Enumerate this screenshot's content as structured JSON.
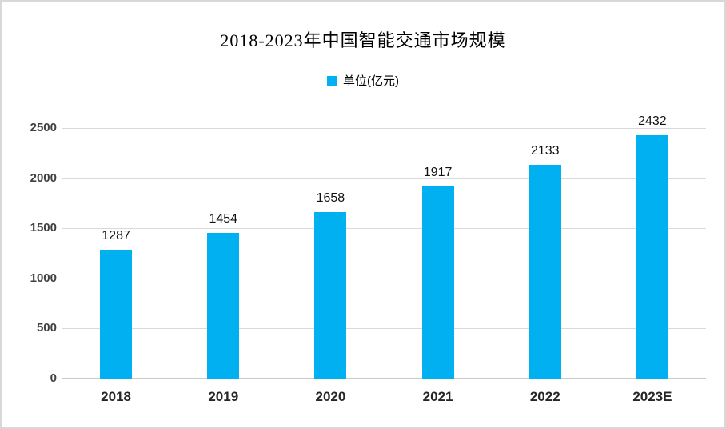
{
  "chart_data": {
    "type": "bar",
    "title": "2018-2023年中国智能交通市场规模",
    "legend": "单位(亿元)",
    "legend_position": "top-center",
    "categories": [
      "2018",
      "2019",
      "2020",
      "2021",
      "2022",
      "2023E"
    ],
    "values": [
      1287,
      1454,
      1658,
      1917,
      2133,
      2432
    ],
    "xlabel": "",
    "ylabel": "",
    "ylim": [
      0,
      2500
    ],
    "yticks": [
      0,
      500,
      1000,
      1500,
      2000,
      2500
    ],
    "grid": true
  },
  "colors": {
    "bar": "#00B0F0",
    "gridline": "#D9D9D9",
    "axis_line": "#C9C9C9",
    "ytick_text": "#404040",
    "xtick_text": "#262626",
    "value_text": "#111111",
    "title_text": "#000000",
    "frame_border": "#D8D8D8"
  }
}
